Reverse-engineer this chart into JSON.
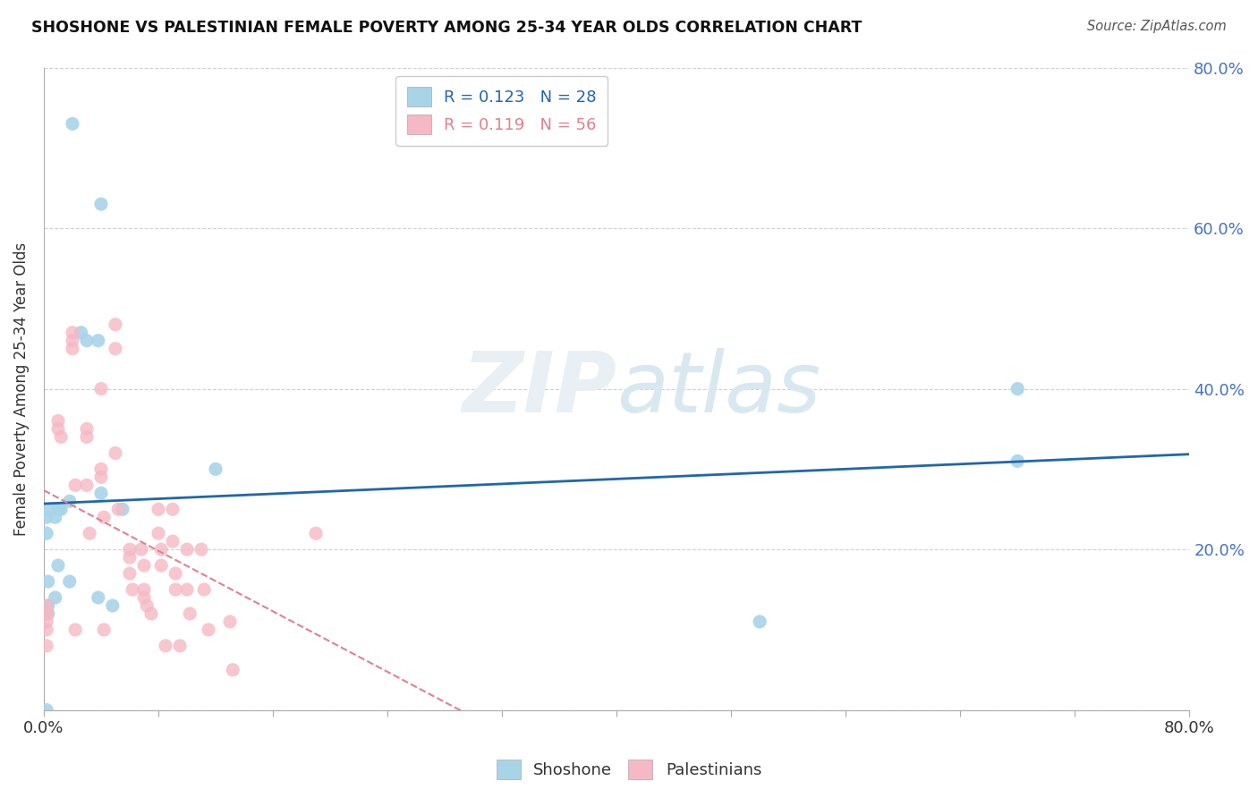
{
  "title": "SHOSHONE VS PALESTINIAN FEMALE POVERTY AMONG 25-34 YEAR OLDS CORRELATION CHART",
  "source": "Source: ZipAtlas.com",
  "ylabel": "Female Poverty Among 25-34 Year Olds",
  "xlim": [
    0.0,
    0.8
  ],
  "ylim": [
    0.0,
    0.8
  ],
  "yticks": [
    0.0,
    0.2,
    0.4,
    0.6,
    0.8
  ],
  "shoshone_color": "#A8D4E8",
  "palestinian_color": "#F5B8C4",
  "shoshone_R": 0.123,
  "shoshone_N": 28,
  "palestinian_R": 0.119,
  "palestinian_N": 56,
  "shoshone_line_color": "#2166AC",
  "palestinian_line_color": "#E08090",
  "watermark_color": "#E8EFF5",
  "background_color": "#ffffff",
  "grid_color": "#d0d0d0",
  "right_tick_color": "#4472C4",
  "shoshone_x": [
    0.02,
    0.04,
    0.026,
    0.03,
    0.038,
    0.04,
    0.002,
    0.008,
    0.018,
    0.003,
    0.012,
    0.002,
    0.01,
    0.018,
    0.003,
    0.008,
    0.003,
    0.048,
    0.038,
    0.055,
    0.002,
    0.003,
    0.01,
    0.002,
    0.5,
    0.68,
    0.68,
    0.12
  ],
  "shoshone_y": [
    0.73,
    0.63,
    0.47,
    0.46,
    0.46,
    0.27,
    0.24,
    0.24,
    0.26,
    0.25,
    0.25,
    0.22,
    0.18,
    0.16,
    0.16,
    0.14,
    0.13,
    0.13,
    0.14,
    0.25,
    0.12,
    0.12,
    0.25,
    0.0,
    0.11,
    0.31,
    0.4,
    0.3
  ],
  "palestinian_x": [
    0.002,
    0.002,
    0.002,
    0.002,
    0.002,
    0.002,
    0.01,
    0.01,
    0.012,
    0.02,
    0.02,
    0.02,
    0.022,
    0.022,
    0.03,
    0.03,
    0.03,
    0.032,
    0.04,
    0.04,
    0.04,
    0.042,
    0.042,
    0.05,
    0.05,
    0.05,
    0.052,
    0.06,
    0.06,
    0.06,
    0.062,
    0.068,
    0.07,
    0.07,
    0.07,
    0.072,
    0.075,
    0.08,
    0.08,
    0.082,
    0.082,
    0.085,
    0.09,
    0.09,
    0.092,
    0.092,
    0.095,
    0.1,
    0.1,
    0.102,
    0.11,
    0.112,
    0.115,
    0.13,
    0.132,
    0.19
  ],
  "palestinian_y": [
    0.13,
    0.12,
    0.12,
    0.11,
    0.1,
    0.08,
    0.36,
    0.35,
    0.34,
    0.47,
    0.46,
    0.45,
    0.28,
    0.1,
    0.35,
    0.34,
    0.28,
    0.22,
    0.4,
    0.3,
    0.29,
    0.24,
    0.1,
    0.48,
    0.45,
    0.32,
    0.25,
    0.2,
    0.19,
    0.17,
    0.15,
    0.2,
    0.18,
    0.15,
    0.14,
    0.13,
    0.12,
    0.25,
    0.22,
    0.2,
    0.18,
    0.08,
    0.25,
    0.21,
    0.17,
    0.15,
    0.08,
    0.2,
    0.15,
    0.12,
    0.2,
    0.15,
    0.1,
    0.11,
    0.05,
    0.22
  ]
}
